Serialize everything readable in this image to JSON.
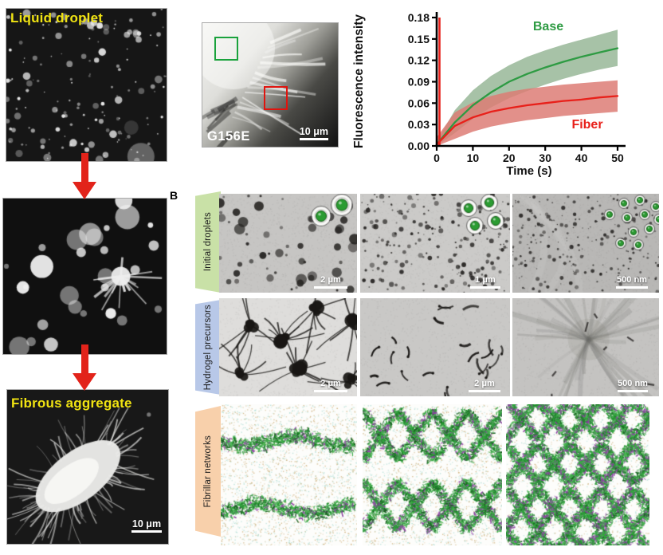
{
  "figure": {
    "panel_a": {
      "label_color": "#f0e312",
      "arrow_color": "#e2231a",
      "images": [
        {
          "type": "fluorescent-droplets",
          "label": "Liquid droplet"
        },
        {
          "type": "droplets-with-star",
          "label": ""
        },
        {
          "type": "fibrous-aggregate",
          "label": "Fibrous aggregate",
          "scale_bar": "10 μm"
        }
      ]
    },
    "frap_micrograph": {
      "type": "g156e-fibrils",
      "label": "G156E",
      "scale_bar": "10 μm",
      "roi": [
        {
          "name": "base-region",
          "color": "#1aa23c"
        },
        {
          "name": "fiber-region",
          "color": "#e0140e"
        }
      ]
    },
    "panel_b": {
      "label": "B",
      "sim_palette": {
        "greens": [
          "#1e8f2b",
          "#2fa43c",
          "#49b552"
        ],
        "dark_green": "#15601c",
        "purple": "#8d3fa3",
        "tan": "#cdae77",
        "cyan": "#a8dcd2"
      },
      "rows": [
        {
          "label": "Initial droplets",
          "label_bg": "#c9e1a7",
          "images": [
            {
              "type": "tem-droplets-large",
              "scale_bar": "2 μm",
              "inset": "two green droplets in white rings"
            },
            {
              "type": "tem-droplets-medium",
              "scale_bar": "1 μm",
              "inset": "four green droplets in white rings"
            },
            {
              "type": "tem-droplets-small",
              "scale_bar": "500 nm",
              "inset": "cluster of small green droplets"
            }
          ]
        },
        {
          "label": "Hydrogel precursors",
          "label_bg": "#b8c8e8",
          "images": [
            {
              "type": "tem-starbursts",
              "scale_bar": "2 μm"
            },
            {
              "type": "tem-tadpoles",
              "scale_bar": "2 μm"
            },
            {
              "type": "tem-fiber-star",
              "scale_bar": "500 nm"
            }
          ]
        },
        {
          "label": "Fibrillar networks",
          "label_bg": "#f8d0ab",
          "images": [
            {
              "type": "sim-bands"
            },
            {
              "type": "sim-zigzag"
            },
            {
              "type": "sim-dense"
            }
          ]
        }
      ]
    }
  },
  "chart_data": {
    "type": "line",
    "title": "",
    "xlabel": "Time (s)",
    "ylabel": "Fluorescence intensity",
    "xlim": [
      0,
      50
    ],
    "ylim": [
      0,
      0.18
    ],
    "xticks": [
      0,
      10,
      20,
      30,
      40,
      50
    ],
    "ytick_labels": [
      "0.00",
      "0.03",
      "0.06",
      "0.09",
      "0.12",
      "0.15",
      "0.18"
    ],
    "grid": false,
    "legend_position": "inline-annotations",
    "x": [
      0,
      5,
      10,
      15,
      20,
      25,
      30,
      35,
      40,
      45,
      50
    ],
    "series": [
      {
        "name": "Base",
        "color": "#2e9b43",
        "band_color": "#5e8f5e",
        "band_opacity": 0.55,
        "y": [
          0.002,
          0.033,
          0.057,
          0.075,
          0.09,
          0.101,
          0.11,
          0.118,
          0.125,
          0.131,
          0.137
        ],
        "upper": [
          0.006,
          0.05,
          0.078,
          0.098,
          0.113,
          0.125,
          0.134,
          0.142,
          0.149,
          0.156,
          0.163
        ],
        "lower": [
          0.0,
          0.018,
          0.038,
          0.054,
          0.067,
          0.077,
          0.086,
          0.094,
          0.101,
          0.107,
          0.112
        ]
      },
      {
        "name": "Fiber",
        "color": "#e8201a",
        "band_color": "#dd7d76",
        "band_opacity": 0.85,
        "y": [
          0.002,
          0.028,
          0.04,
          0.048,
          0.053,
          0.057,
          0.06,
          0.063,
          0.065,
          0.068,
          0.07
        ],
        "upper": [
          0.012,
          0.047,
          0.061,
          0.07,
          0.076,
          0.08,
          0.083,
          0.086,
          0.088,
          0.09,
          0.092
        ],
        "lower": [
          0.0,
          0.01,
          0.02,
          0.027,
          0.032,
          0.036,
          0.039,
          0.042,
          0.044,
          0.046,
          0.048
        ]
      }
    ],
    "event_line": {
      "t": 0,
      "color": "#e8201a"
    }
  }
}
